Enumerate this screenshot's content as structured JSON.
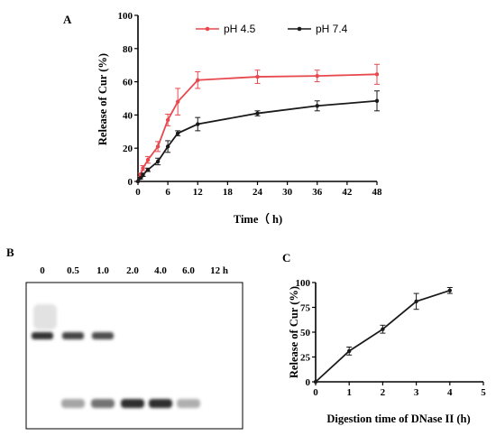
{
  "colors": {
    "ph45": "#e8494f",
    "ph74": "#1a1a1a",
    "axis": "#000000"
  },
  "panel_labels": {
    "a": "A",
    "b": "B",
    "c": "C"
  },
  "chart_data": [
    {
      "type": "line",
      "panel": "A",
      "xlabel": "Time（ h)",
      "ylabel": "Release of Cur (%)",
      "xlim": [
        0,
        48
      ],
      "ylim": [
        0,
        100
      ],
      "xticks": [
        0,
        6,
        12,
        18,
        24,
        30,
        36,
        42,
        48
      ],
      "yticks": [
        0,
        20,
        40,
        60,
        80,
        100
      ],
      "legend_position": "top",
      "series": [
        {
          "name": "pH 4.5",
          "color": "#e8494f",
          "x": [
            0,
            0.5,
            1,
            2,
            4,
            6,
            8,
            12,
            24,
            36,
            48
          ],
          "y": [
            0,
            4,
            8,
            13,
            21,
            37,
            48,
            61,
            63,
            63.5,
            64.5
          ],
          "err": [
            0,
            1,
            1.5,
            2,
            3,
            3.5,
            8,
            5,
            4,
            3.5,
            6
          ]
        },
        {
          "name": "pH 7.4",
          "color": "#1a1a1a",
          "x": [
            0,
            0.5,
            1,
            2,
            4,
            6,
            8,
            12,
            24,
            36,
            48
          ],
          "y": [
            0,
            2,
            4,
            7,
            12,
            21,
            29,
            34.5,
            41,
            45.5,
            48.5
          ],
          "err": [
            0,
            0.5,
            1,
            1,
            2,
            3.5,
            1.5,
            4,
            1.5,
            3,
            6
          ]
        }
      ]
    },
    {
      "type": "line",
      "panel": "C",
      "xlabel": "Digestion time of DNase II (h)",
      "ylabel": "Release of Cur (%)",
      "xlim": [
        0,
        5
      ],
      "ylim": [
        0,
        100
      ],
      "xticks": [
        0,
        1,
        2,
        3,
        4,
        5
      ],
      "yticks": [
        0,
        25,
        50,
        75,
        100
      ],
      "series": [
        {
          "color": "#1a1a1a",
          "x": [
            0,
            1,
            2,
            3,
            4
          ],
          "y": [
            0,
            31,
            53,
            81,
            92
          ],
          "err": [
            0,
            4,
            4,
            8,
            3
          ]
        }
      ]
    }
  ],
  "gel": {
    "panel": "B",
    "lane_labels": [
      "0",
      "0.5",
      "1.0",
      "2.0",
      "4.0",
      "6.0",
      "12 h"
    ],
    "upper_band_intensity": [
      0.95,
      0.85,
      0.8,
      0,
      0,
      0,
      0
    ],
    "lower_band_intensity": [
      0,
      0.35,
      0.6,
      0.95,
      0.95,
      0.3,
      0
    ]
  }
}
